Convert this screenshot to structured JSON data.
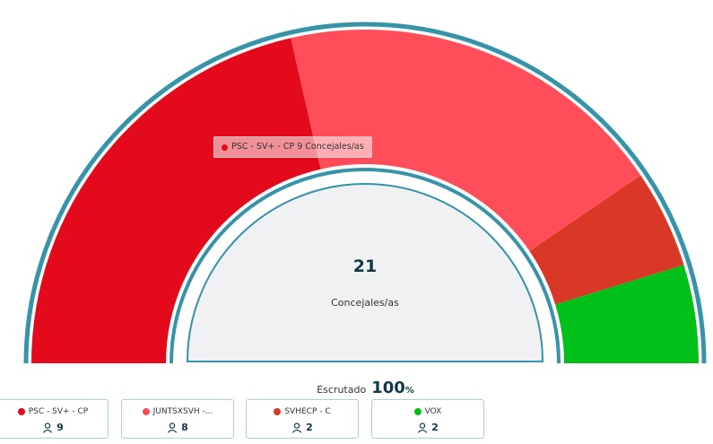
{
  "chart_data": {
    "type": "pie",
    "variant": "semicircle",
    "total": "21",
    "total_label": "Concejales/as",
    "series": [
      {
        "name": "PSC - SV+ - CP",
        "value": 9,
        "color": "#e30a1b"
      },
      {
        "name": "JUNTSXSVH -...",
        "value": 8,
        "color": "#ff4e59"
      },
      {
        "name": "SVHECP - C",
        "value": 2,
        "color": "#d93826"
      },
      {
        "name": "VOX",
        "value": 2,
        "color": "#00c019"
      }
    ],
    "ring_color": "#3794a8"
  },
  "tooltip": {
    "party": "PSC - SV+ - CP",
    "seats": "9",
    "unit": "Concejales/as",
    "color": "#e30a1b"
  },
  "scrutiny": {
    "label": "Escrutado",
    "value": "100",
    "unit": "%"
  },
  "cards": [
    {
      "party": "PSC - SV+ - CP",
      "seats": "9",
      "color": "#e30a1b",
      "icon": "user-icon"
    },
    {
      "party": "JUNTSXSVH -...",
      "seats": "8",
      "color": "#ff4e59",
      "icon": "user-icon"
    },
    {
      "party": "SVHECP - C",
      "seats": "2",
      "color": "#d93826",
      "icon": "user-icon"
    },
    {
      "party": "VOX",
      "seats": "2",
      "color": "#00c019",
      "icon": "user-icon"
    }
  ]
}
